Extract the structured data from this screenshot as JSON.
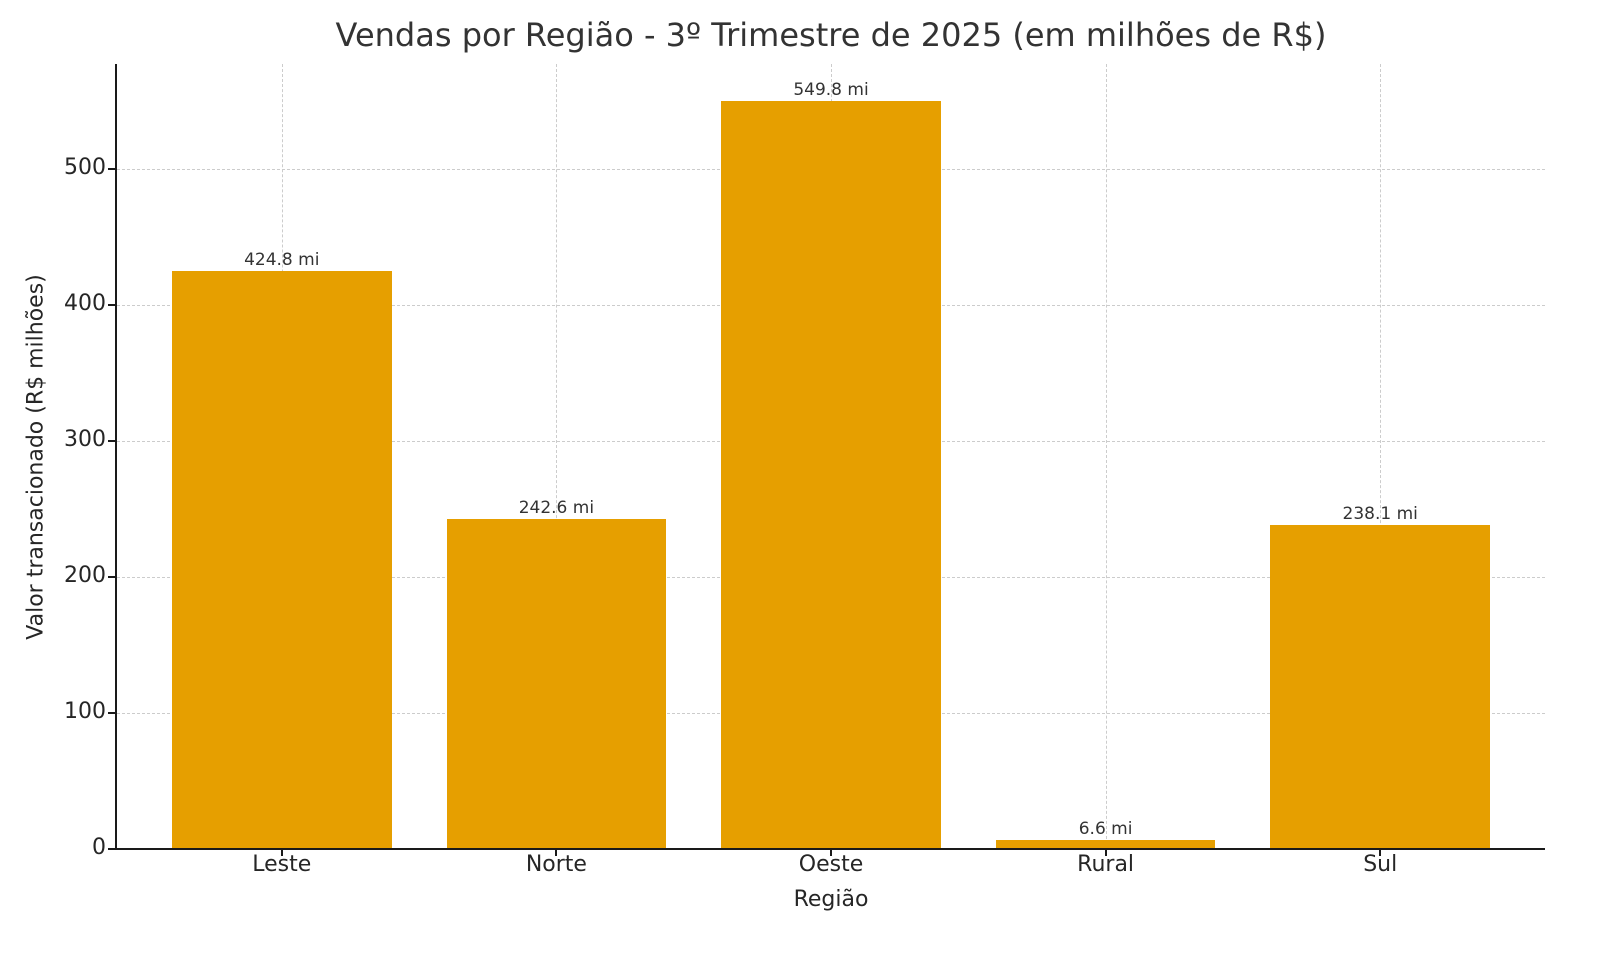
{
  "chart_data": {
    "type": "bar",
    "title": "Vendas por Região - 3º Trimestre de 2025 (em milhões de R$)",
    "xlabel": "Região",
    "ylabel": "Valor transacionado (R$ milhões)",
    "categories": [
      "Leste",
      "Norte",
      "Oeste",
      "Rural",
      "Sul"
    ],
    "values": [
      424.8,
      242.6,
      549.8,
      6.6,
      238.1
    ],
    "data_labels": [
      "424.8 mi",
      "242.6 mi",
      "549.8 mi",
      "6.6 mi",
      "238.1 mi"
    ],
    "ylim": [
      0,
      577
    ],
    "yticks": [
      0,
      100,
      200,
      300,
      400,
      500
    ],
    "grid": true,
    "grid_style": "dashed",
    "legend": null,
    "bar_color": "#E69F00"
  }
}
